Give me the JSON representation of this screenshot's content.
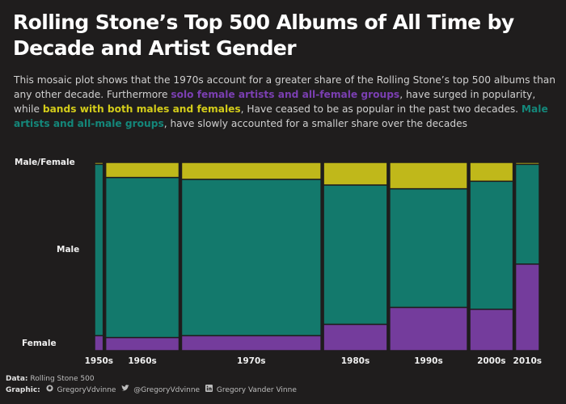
{
  "title": "Rolling Stone’s Top 500  Albums of All Time by Decade and Artist Gender",
  "subtitle": {
    "part1": "This mosaic plot shows that the 1970s account  for a greater share of the Rolling Stone’s top 500 albums  than any other decade. Furthermore ",
    "hl1": "solo female artists and all-female groups",
    "part2": ", have surged in popularity,  while ",
    "hl2": "bands with both males and females",
    "part3": ", Have ceased to be as popular in the past two decades. ",
    "hl3": "Male artists and all-male groups",
    "part4": ", have slowly accounted for a smaller share over the decades"
  },
  "y_axis_labels": {
    "top": "Male/Female",
    "middle": "Male",
    "bottom": "Female"
  },
  "footer": {
    "data_label": "Data:",
    "data_value": "Rolling Stone  500",
    "graphic_label": "Graphic:",
    "github_icon": "github-icon",
    "github": "GregoryVdvinne",
    "twitter_icon": "twitter-icon",
    "twitter": "@GregoryVdvinne",
    "linkedin_icon": "linkedin-icon",
    "linkedin": "Gregory Vander Vinne"
  },
  "colors": {
    "background": "#1f1d1d",
    "female": "#743c9c",
    "male": "#13796c",
    "male_female": "#c0b81a",
    "hl_purple": "#7b3fb2",
    "hl_yellow": "#d3cc1a",
    "hl_teal": "#14877a"
  },
  "chart_data": {
    "type": "mosaic",
    "categories": [
      "1950s",
      "1960s",
      "1970s",
      "1980s",
      "1990s",
      "2000s",
      "2010s"
    ],
    "column_weights": [
      0.046,
      0.392,
      0.745,
      0.34,
      0.415,
      0.231,
      0.127
    ],
    "series": [
      {
        "name": "Female",
        "color_key": "female",
        "values": [
          0.08,
          0.07,
          0.08,
          0.14,
          0.23,
          0.22,
          0.46
        ]
      },
      {
        "name": "Male",
        "color_key": "male",
        "values": [
          0.91,
          0.85,
          0.83,
          0.74,
          0.63,
          0.68,
          0.53
        ]
      },
      {
        "name": "Male/Female",
        "color_key": "male_female",
        "values": [
          0.01,
          0.08,
          0.09,
          0.12,
          0.14,
          0.1,
          0.01
        ]
      }
    ],
    "ylim": [
      0,
      1
    ]
  }
}
